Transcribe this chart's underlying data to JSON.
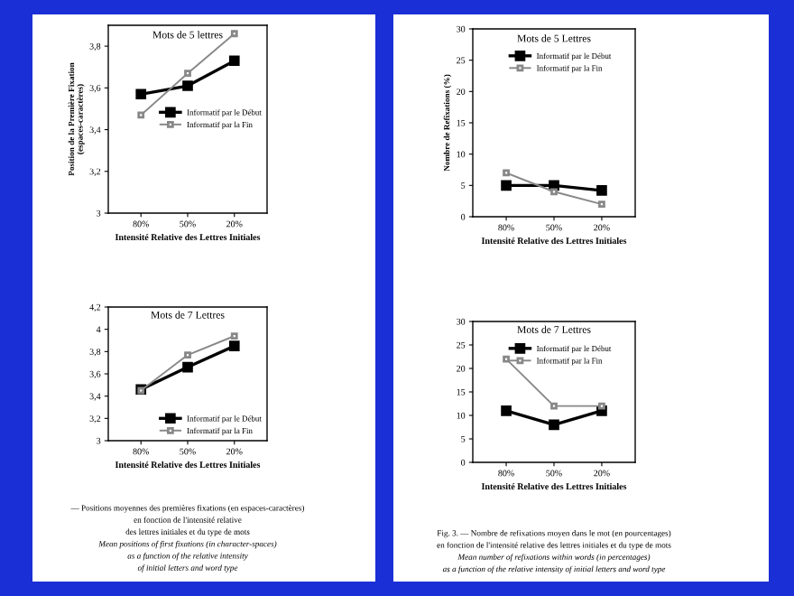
{
  "chart_data": [
    {
      "type": "line",
      "title": "Mots de 5 lettres",
      "ylabel": "Position de la Première Fixation\n(espaces-caractères)",
      "xlabel": "Intensité Relative des Lettres Initiales",
      "categories": [
        "80%",
        "50%",
        "20%"
      ],
      "marker": "square",
      "legend": "center right",
      "ylim": [
        3,
        3.9
      ],
      "yticks": [
        {
          "value": 3,
          "label": "3"
        },
        {
          "value": 3.2,
          "label": "3,2"
        },
        {
          "value": 3.4,
          "label": "3,4"
        },
        {
          "value": 3.6,
          "label": "3,6"
        },
        {
          "value": 3.8,
          "label": "3,8"
        }
      ],
      "series": [
        {
          "name": "Informatif par le Début",
          "color": "#000000",
          "values": [
            3.57,
            3.61,
            3.73
          ]
        },
        {
          "name": "Informatif par la Fin",
          "color": "#888888",
          "values": [
            3.47,
            3.67,
            3.86
          ]
        }
      ]
    },
    {
      "type": "line",
      "title": "Mots de 7 Lettres",
      "xlabel": "Intensité Relative des Lettres Initiales",
      "categories": [
        "80%",
        "50%",
        "20%"
      ],
      "marker": "square",
      "legend": "lower right",
      "ylim": [
        3,
        4.2
      ],
      "yticks": [
        {
          "value": 3,
          "label": "3"
        },
        {
          "value": 3.2,
          "label": "3,2"
        },
        {
          "value": 3.4,
          "label": "3,4"
        },
        {
          "value": 3.6,
          "label": "3,6"
        },
        {
          "value": 3.8,
          "label": "3,8"
        },
        {
          "value": 4,
          "label": "4"
        },
        {
          "value": 4.2,
          "label": "4,2"
        }
      ],
      "series": [
        {
          "name": "Informatif par le Début",
          "color": "#000000",
          "values": [
            3.46,
            3.66,
            3.85
          ]
        },
        {
          "name": "Informatif par la Fin",
          "color": "#888888",
          "values": [
            3.45,
            3.77,
            3.94
          ]
        }
      ],
      "annotations": [
        "— Positions moyennes des premières fixations (en espaces-caractères)",
        "en fonction de l'intensité relative",
        "des lettres initiales et du type de mots",
        "Mean positions of first fixations (in character-spaces)",
        "as a function of the relative intensity",
        "of initial letters and word type"
      ]
    },
    {
      "type": "line",
      "title": "Mots de 5 Lettres",
      "ylabel": "Nombre de Refixations (%)",
      "xlabel": "Intensité Relative des Lettres Initiales",
      "categories": [
        "80%",
        "50%",
        "20%"
      ],
      "marker": "square",
      "legend": "upper right",
      "ylim": [
        0,
        30
      ],
      "yticks": [
        0,
        5,
        10,
        15,
        20,
        25,
        30
      ],
      "series": [
        {
          "name": "Informatif par le Début",
          "color": "#000000",
          "values": [
            5,
            5,
            4.2
          ]
        },
        {
          "name": "Informatif par la Fin",
          "color": "#888888",
          "values": [
            7,
            4,
            2
          ]
        }
      ]
    },
    {
      "type": "line",
      "title": "Mots de 7 Lettres",
      "xlabel": "Intensité Relative des Lettres Initiales",
      "categories": [
        "80%",
        "50%",
        "20%"
      ],
      "marker": "square",
      "legend": "upper right",
      "ylim": [
        0,
        30
      ],
      "yticks": [
        0,
        5,
        10,
        15,
        20,
        25,
        30
      ],
      "series": [
        {
          "name": "Informatif par le Début",
          "color": "#000000",
          "values": [
            11,
            8,
            11
          ]
        },
        {
          "name": "Informatif par la Fin",
          "color": "#888888",
          "values": [
            22,
            12,
            12
          ]
        }
      ],
      "annotations": [
        "Fig. 3. — Nombre de refixations moyen dans le mot (en pourcentages)",
        "en fonction de l'intensité relative des lettres initiales et du type de mots",
        "Mean number of refixations within words (in percentages)",
        "as a function of the relative intensity of initial letters and word type"
      ]
    }
  ]
}
